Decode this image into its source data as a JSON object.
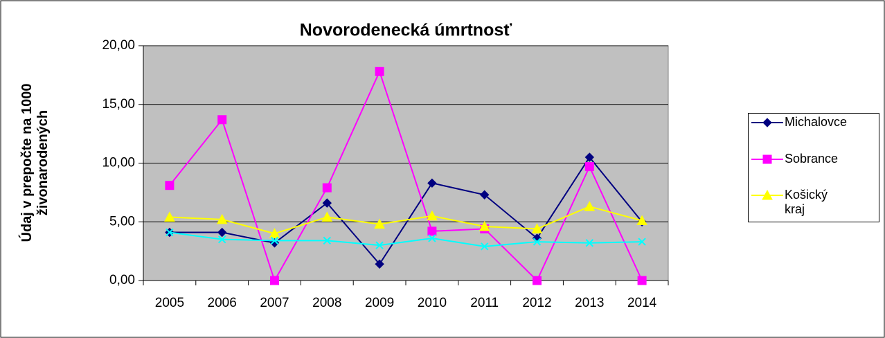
{
  "chart_data": {
    "type": "line",
    "title": "Novorodenecká úmrtnosť",
    "ylabel": [
      "Údaj v prepočte na 1000",
      "živonarodených"
    ],
    "categories": [
      "2005",
      "2006",
      "2007",
      "2008",
      "2009",
      "2010",
      "2011",
      "2012",
      "2013",
      "2014"
    ],
    "series": [
      {
        "name": "Michalovce",
        "color": "#000080",
        "marker": "diamond",
        "values": [
          4.1,
          4.1,
          3.2,
          6.6,
          1.4,
          8.3,
          7.3,
          3.6,
          10.5,
          5.0
        ]
      },
      {
        "name": "Sobrance",
        "color": "#ff00ff",
        "marker": "square",
        "values": [
          8.1,
          13.7,
          0,
          7.9,
          17.8,
          4.2,
          4.4,
          0,
          9.7,
          0
        ]
      },
      {
        "name": "Košický kraj",
        "color": "#ffff00",
        "marker": "triangle",
        "values": [
          5.4,
          5.2,
          4.0,
          5.4,
          4.8,
          5.5,
          4.6,
          4.4,
          6.3,
          5.1
        ]
      },
      {
        "color": "#00ffff",
        "marker": "x",
        "values": [
          4.1,
          3.5,
          3.4,
          3.4,
          3.0,
          3.6,
          2.9,
          3.3,
          3.2,
          3.3
        ]
      }
    ],
    "ylim": [
      0,
      20
    ],
    "yticks": [
      {
        "value": 0,
        "label": "0,00"
      },
      {
        "value": 5,
        "label": "5,00"
      },
      {
        "value": 10,
        "label": "10,00"
      },
      {
        "value": 15,
        "label": "15,00"
      },
      {
        "value": 20,
        "label": "20,00"
      }
    ],
    "grid": true,
    "legend": "right"
  }
}
